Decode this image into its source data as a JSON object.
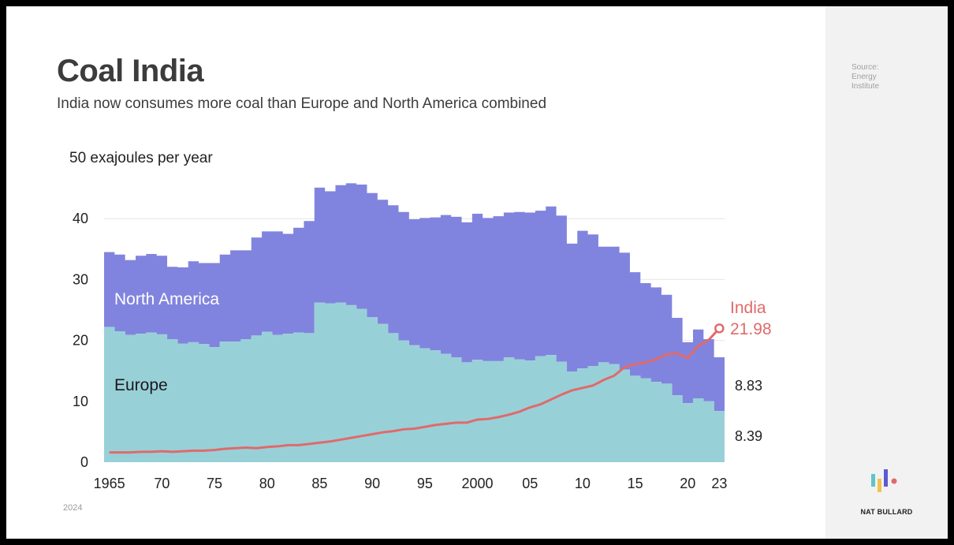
{
  "title": "Coal India",
  "subtitle": "India now consumes more coal than Europe and North America combined",
  "source": "Source:\nEnergy\nInstitute",
  "footer_year": "2024",
  "brand": "NAT BULLARD",
  "colors": {
    "north_america": "#8184de",
    "europe": "#98d0d8",
    "india": "#e06a6a",
    "grid": "#e6e6e6",
    "text": "#3c3c3c"
  },
  "chart_data": {
    "type": "area",
    "ylabel": "50 exajoules per year",
    "ylim": [
      0,
      50
    ],
    "y_ticks": [
      "0",
      "10",
      "20",
      "30",
      "40"
    ],
    "x_ticks": [
      {
        "year": 1965,
        "label": "1965"
      },
      {
        "year": 1970,
        "label": "70"
      },
      {
        "year": 1975,
        "label": "75"
      },
      {
        "year": 1980,
        "label": "80"
      },
      {
        "year": 1985,
        "label": "85"
      },
      {
        "year": 1990,
        "label": "90"
      },
      {
        "year": 1995,
        "label": "95"
      },
      {
        "year": 2000,
        "label": "2000"
      },
      {
        "year": 2005,
        "label": "05"
      },
      {
        "year": 2010,
        "label": "10"
      },
      {
        "year": 2015,
        "label": "15"
      },
      {
        "year": 2020,
        "label": "20"
      },
      {
        "year": 2023,
        "label": "23"
      }
    ],
    "x": [
      1965,
      1966,
      1967,
      1968,
      1969,
      1970,
      1971,
      1972,
      1973,
      1974,
      1975,
      1976,
      1977,
      1978,
      1979,
      1980,
      1981,
      1982,
      1983,
      1984,
      1985,
      1986,
      1987,
      1988,
      1989,
      1990,
      1991,
      1992,
      1993,
      1994,
      1995,
      1996,
      1997,
      1998,
      1999,
      2000,
      2001,
      2002,
      2003,
      2004,
      2005,
      2006,
      2007,
      2008,
      2009,
      2010,
      2011,
      2012,
      2013,
      2014,
      2015,
      2016,
      2017,
      2018,
      2019,
      2020,
      2021,
      2022,
      2023
    ],
    "series": [
      {
        "name": "Europe",
        "values": [
          22.2,
          21.5,
          20.9,
          21.1,
          21.3,
          21.0,
          20.2,
          19.5,
          19.7,
          19.4,
          18.9,
          19.8,
          19.8,
          20.2,
          20.8,
          21.4,
          20.9,
          21.1,
          21.3,
          21.2,
          26.2,
          26.1,
          26.2,
          25.8,
          25.2,
          23.8,
          22.7,
          21.2,
          20.0,
          19.2,
          18.7,
          18.4,
          17.8,
          17.2,
          16.4,
          16.8,
          16.6,
          16.6,
          17.2,
          16.9,
          16.7,
          17.4,
          17.6,
          16.5,
          14.9,
          15.4,
          15.8,
          16.4,
          16.1,
          15.2,
          14.2,
          13.8,
          13.2,
          12.9,
          11.0,
          9.7,
          10.5,
          10.0,
          8.39
        ]
      },
      {
        "name": "North America",
        "values": [
          12.3,
          12.6,
          12.3,
          12.8,
          12.9,
          12.9,
          11.9,
          12.5,
          13.3,
          13.3,
          13.8,
          14.3,
          15.0,
          14.6,
          16.1,
          16.5,
          17.0,
          16.4,
          17.2,
          18.4,
          18.9,
          18.4,
          19.3,
          20.0,
          20.4,
          20.4,
          20.4,
          21.0,
          21.1,
          20.7,
          21.4,
          21.8,
          22.8,
          23.1,
          23.0,
          24.0,
          23.5,
          23.8,
          23.8,
          24.2,
          24.3,
          23.9,
          24.4,
          24.0,
          21.0,
          22.6,
          21.6,
          19.0,
          19.3,
          19.2,
          17.0,
          15.6,
          15.5,
          14.6,
          12.7,
          10.0,
          11.3,
          10.2,
          8.83
        ]
      },
      {
        "name": "India",
        "values": [
          1.6,
          1.6,
          1.6,
          1.7,
          1.7,
          1.8,
          1.7,
          1.8,
          1.9,
          1.9,
          2.0,
          2.2,
          2.3,
          2.4,
          2.3,
          2.5,
          2.6,
          2.8,
          2.8,
          3.0,
          3.2,
          3.4,
          3.7,
          4.0,
          4.3,
          4.6,
          4.9,
          5.1,
          5.4,
          5.5,
          5.8,
          6.1,
          6.3,
          6.5,
          6.5,
          7.0,
          7.1,
          7.4,
          7.8,
          8.3,
          9.0,
          9.5,
          10.3,
          11.1,
          11.8,
          12.2,
          12.6,
          13.5,
          14.2,
          15.6,
          16.1,
          16.4,
          16.9,
          17.7,
          17.9,
          17.1,
          19.1,
          20.1,
          21.98
        ]
      }
    ],
    "end_labels": {
      "india": "21.98",
      "north_america": "8.83",
      "europe": "8.39"
    },
    "series_labels": {
      "north_america": "North America",
      "europe": "Europe",
      "india": "India"
    }
  }
}
